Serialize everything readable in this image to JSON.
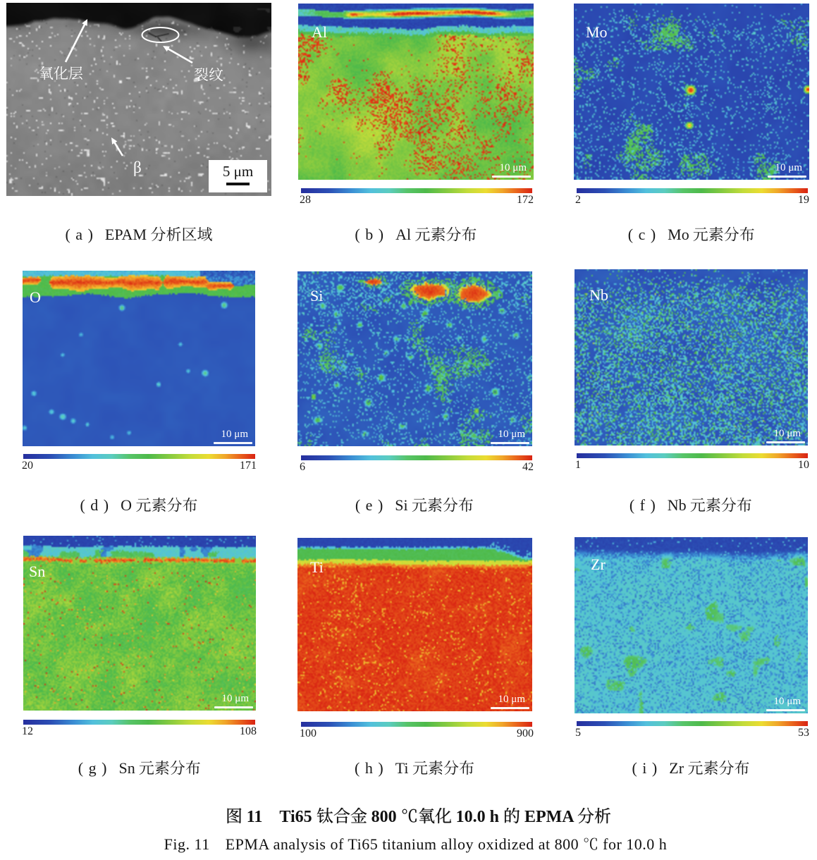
{
  "figure": {
    "panels": [
      {
        "id": "a",
        "type": "sem",
        "caption_index": "( a )",
        "caption_label": "EPAM 分析区域",
        "scale_bar": "5 μm",
        "annotations": {
          "oxide_layer": "氧化层",
          "crack": "裂纹",
          "beta": "β"
        }
      },
      {
        "id": "b",
        "type": "map",
        "element": "Al",
        "caption_index": "( b )",
        "caption_label": "Al 元素分布",
        "scale_bar": "10 μm",
        "colorbar": {
          "min": "28",
          "max": "172"
        }
      },
      {
        "id": "c",
        "type": "map",
        "element": "Mo",
        "caption_index": "( c )",
        "caption_label": "Mo 元素分布",
        "scale_bar": "10 μm",
        "colorbar": {
          "min": "2",
          "max": "19"
        }
      },
      {
        "id": "d",
        "type": "map",
        "element": "O",
        "caption_index": "( d )",
        "caption_label": "O 元素分布",
        "scale_bar": "10 μm",
        "colorbar": {
          "min": "20",
          "max": "171"
        }
      },
      {
        "id": "e",
        "type": "map",
        "element": "Si",
        "caption_index": "( e )",
        "caption_label": "Si 元素分布",
        "scale_bar": "10 μm",
        "colorbar": {
          "min": "6",
          "max": "42"
        }
      },
      {
        "id": "f",
        "type": "map",
        "element": "Nb",
        "caption_index": "( f )",
        "caption_label": "Nb 元素分布",
        "scale_bar": "10 μm",
        "colorbar": {
          "min": "1",
          "max": "10"
        }
      },
      {
        "id": "g",
        "type": "map",
        "element": "Sn",
        "caption_index": "( g )",
        "caption_label": "Sn 元素分布",
        "scale_bar": "10 μm",
        "colorbar": {
          "min": "12",
          "max": "108"
        }
      },
      {
        "id": "h",
        "type": "map",
        "element": "Ti",
        "caption_index": "( h )",
        "caption_label": "Ti 元素分布",
        "scale_bar": "10 μm",
        "colorbar": {
          "min": "100",
          "max": "900"
        }
      },
      {
        "id": "i",
        "type": "map",
        "element": "Zr",
        "caption_index": "( i )",
        "caption_label": "Zr 元素分布",
        "scale_bar": "10 μm",
        "colorbar": {
          "min": "5",
          "max": "53"
        }
      }
    ],
    "captions": {
      "zh": "图 11　Ti65 钛合金 800 ℃氧化 10.0 h 的 EPMA 分析",
      "en": "Fig. 11　EPMA analysis of Ti65 titanium alloy oxidized at 800 ℃ for 10.0 h"
    },
    "colors": {
      "background": "#ffffff",
      "annotation_color": "#ffffff",
      "scalebox_background": "#ffffff",
      "scalebox_text": "#111111",
      "caption_text": "#1a1a1a",
      "colormap_stops": [
        "#262f9e",
        "#2c4fb5",
        "#3b8fd4",
        "#52c0dc",
        "#5bccc0",
        "#57c468",
        "#4eba4a",
        "#85ca40",
        "#c3dc3a",
        "#ecdc31",
        "#f0a62a",
        "#ea671d",
        "#d92313"
      ]
    }
  }
}
